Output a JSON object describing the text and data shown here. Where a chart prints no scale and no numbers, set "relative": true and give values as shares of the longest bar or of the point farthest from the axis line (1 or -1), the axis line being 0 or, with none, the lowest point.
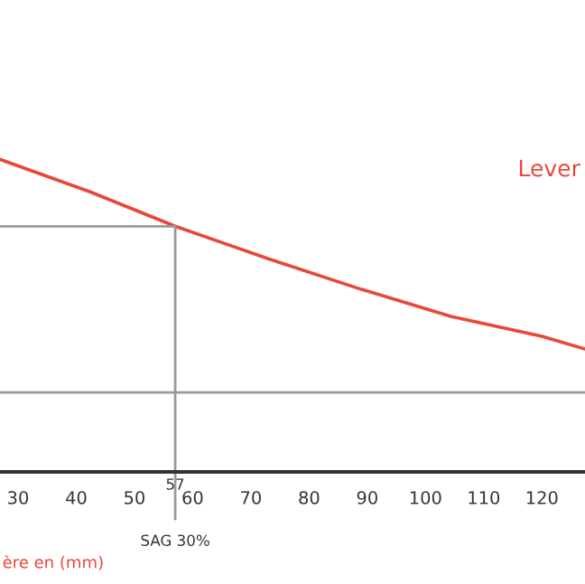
{
  "chart_data": {
    "type": "line",
    "relative": true,
    "title": "Lever",
    "xlabel": "ère en (mm)",
    "x": [
      26.9,
      42.4,
      57,
      73,
      89,
      104.5,
      120,
      127.4
    ],
    "series": [
      {
        "color": "#e8483a",
        "values": [
          1.0,
          0.896,
          0.786,
          0.682,
          0.584,
          0.497,
          0.434,
          0.393
        ]
      }
    ],
    "xlim": [
      26.9,
      127.4
    ],
    "xticks": [
      30,
      40,
      50,
      60,
      70,
      80,
      90,
      100,
      110,
      120
    ],
    "ref_lines": [
      {
        "axis": "x",
        "value": 57,
        "label": "57",
        "color": "#999999"
      },
      {
        "axis": "y",
        "value": 0.786,
        "color": "#999999"
      },
      {
        "axis": "y",
        "value": 0.254,
        "color": "#999999"
      }
    ],
    "annotations": [
      "SAG 30%"
    ],
    "grid": false,
    "legend": false,
    "marker": "none",
    "line_style": "solid"
  }
}
